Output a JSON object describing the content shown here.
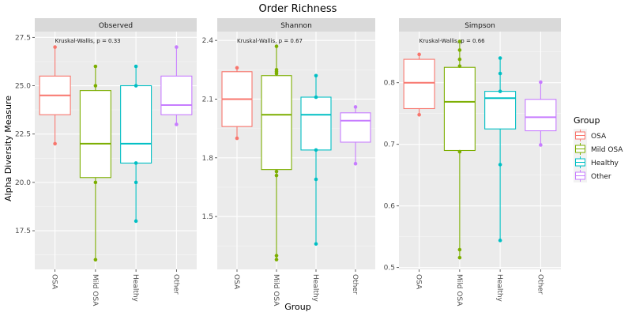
{
  "chart_data": {
    "type": "boxplot",
    "title": "Order Richness",
    "xlabel": "Group",
    "ylabel": "Alpha Diversity Measure",
    "categories": [
      "OSA",
      "Mild OSA",
      "Healthy",
      "Other"
    ],
    "colors": {
      "OSA": "#F8766D",
      "Mild OSA": "#7CAE00",
      "Healthy": "#00BFC4",
      "Other": "#C77CFF"
    },
    "grid": true,
    "legend": {
      "title": "Group",
      "position": "right",
      "entries": [
        "OSA",
        "Mild OSA",
        "Healthy",
        "Other"
      ]
    },
    "panels": [
      {
        "name": "Observed",
        "annotation": "Kruskal-Wallis, p = 0.33",
        "ylim": [
          15.5,
          27.8
        ],
        "yticks": [
          17.5,
          20.0,
          22.5,
          25.0,
          27.5
        ],
        "ytick_labels": [
          "17.5",
          "20.0",
          "22.5",
          "25.0",
          "27.5"
        ],
        "boxes": [
          {
            "group": "OSA",
            "q1": 23.5,
            "median": 24.5,
            "q3": 25.5,
            "whisker_low": 22,
            "whisker_high": 27,
            "points": [
              22,
              27
            ]
          },
          {
            "group": "Mild OSA",
            "q1": 20.25,
            "median": 22,
            "q3": 24.75,
            "whisker_low": 16,
            "whisker_high": 26,
            "points": [
              16,
              20,
              25,
              26
            ]
          },
          {
            "group": "Healthy",
            "q1": 21,
            "median": 22,
            "q3": 25,
            "whisker_low": 18,
            "whisker_high": 26,
            "points": [
              18,
              20,
              21,
              25,
              26
            ]
          },
          {
            "group": "Other",
            "q1": 23.5,
            "median": 24,
            "q3": 25.5,
            "whisker_low": 23,
            "whisker_high": 27,
            "points": [
              23,
              27
            ]
          }
        ]
      },
      {
        "name": "Shannon",
        "annotation": "Kruskal-Wallis, p = 0.67",
        "ylim": [
          1.23,
          2.445
        ],
        "yticks": [
          1.5,
          1.8,
          2.1,
          2.4
        ],
        "ytick_labels": [
          "1.5",
          "1.8",
          "2.1",
          "2.4"
        ],
        "boxes": [
          {
            "group": "OSA",
            "q1": 1.96,
            "median": 2.1,
            "q3": 2.24,
            "whisker_low": 1.9,
            "whisker_high": 2.26,
            "points": [
              1.9,
              2.26
            ]
          },
          {
            "group": "Mild OSA",
            "q1": 1.74,
            "median": 2.02,
            "q3": 2.22,
            "whisker_low": 1.28,
            "whisker_high": 2.37,
            "points": [
              1.28,
              1.3,
              1.71,
              1.73,
              2.23,
              2.24,
              2.25,
              2.37
            ]
          },
          {
            "group": "Healthy",
            "q1": 1.84,
            "median": 2.02,
            "q3": 2.11,
            "whisker_low": 1.36,
            "whisker_high": 2.22,
            "points": [
              1.36,
              1.69,
              1.84,
              2.11,
              2.22
            ]
          },
          {
            "group": "Other",
            "q1": 1.88,
            "median": 1.99,
            "q3": 2.03,
            "whisker_low": 1.77,
            "whisker_high": 2.06,
            "points": [
              1.77,
              2.06
            ]
          }
        ]
      },
      {
        "name": "Simpson",
        "annotation": "Kruskal-Wallis, p = 0.66",
        "ylim": [
          0.497,
          0.883
        ],
        "yticks": [
          0.5,
          0.6,
          0.7,
          0.8
        ],
        "ytick_labels": [
          "0.5",
          "0.6",
          "0.7",
          "0.8"
        ],
        "boxes": [
          {
            "group": "OSA",
            "q1": 0.758,
            "median": 0.8,
            "q3": 0.838,
            "whisker_low": 0.748,
            "whisker_high": 0.846,
            "points": [
              0.748,
              0.846
            ]
          },
          {
            "group": "Mild OSA",
            "q1": 0.69,
            "median": 0.769,
            "q3": 0.825,
            "whisker_low": 0.516,
            "whisker_high": 0.867,
            "points": [
              0.516,
              0.529,
              0.688,
              0.827,
              0.838,
              0.853,
              0.867
            ]
          },
          {
            "group": "Healthy",
            "q1": 0.725,
            "median": 0.775,
            "q3": 0.786,
            "whisker_low": 0.544,
            "whisker_high": 0.84,
            "points": [
              0.544,
              0.667,
              0.786,
              0.815,
              0.84
            ]
          },
          {
            "group": "Other",
            "q1": 0.722,
            "median": 0.744,
            "q3": 0.773,
            "whisker_low": 0.699,
            "whisker_high": 0.801,
            "points": [
              0.699,
              0.801
            ]
          }
        ]
      }
    ]
  }
}
